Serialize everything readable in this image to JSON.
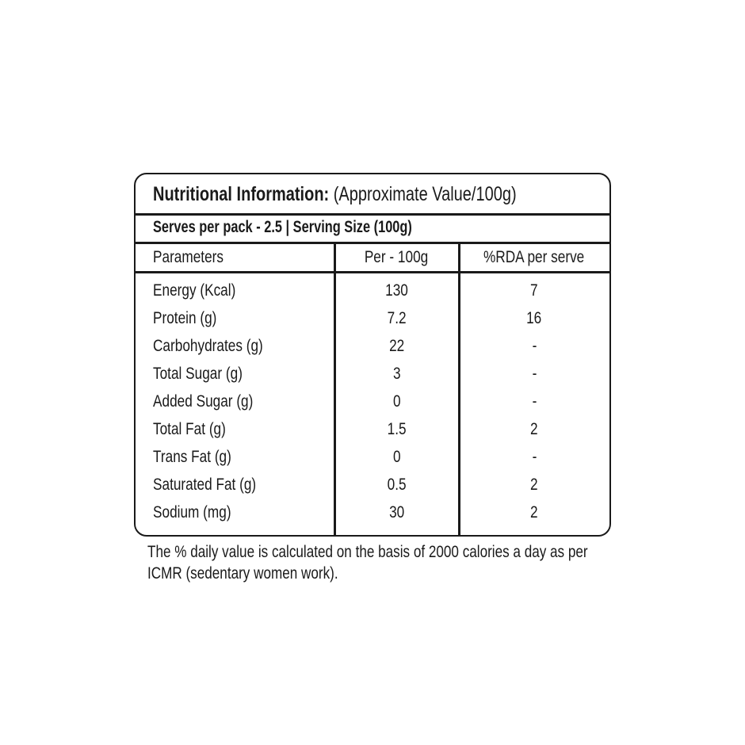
{
  "title": {
    "bold": "Nutritional Information:",
    "rest": " (Approximate Value/100g)"
  },
  "serving": "Serves per pack - 2.5 | Serving Size (100g)",
  "columns": [
    "Parameters",
    "Per - 100g",
    "%RDA per serve"
  ],
  "rows": [
    {
      "param": "Energy (Kcal)",
      "per100g": "130",
      "rda": "7"
    },
    {
      "param": "Protein (g)",
      "per100g": "7.2",
      "rda": "16"
    },
    {
      "param": "Carbohydrates (g)",
      "per100g": "22",
      "rda": "-"
    },
    {
      "param": "Total Sugar (g)",
      "per100g": "3",
      "rda": "-"
    },
    {
      "param": "Added Sugar (g)",
      "per100g": "0",
      "rda": "-"
    },
    {
      "param": "Total Fat (g)",
      "per100g": "1.5",
      "rda": "2"
    },
    {
      "param": "Trans Fat (g)",
      "per100g": "0",
      "rda": "-"
    },
    {
      "param": "Saturated Fat (g)",
      "per100g": "0.5",
      "rda": "2"
    },
    {
      "param": "Sodium (mg)",
      "per100g": "30",
      "rda": "2"
    }
  ],
  "footnote": [
    "The % daily value is calculated on the basis of 2000 calories a day as per",
    "ICMR (sedentary women work)."
  ]
}
